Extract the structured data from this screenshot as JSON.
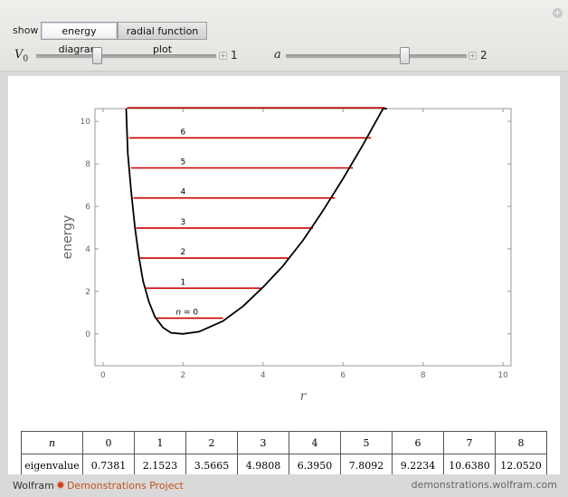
{
  "controls": {
    "show_label": "show",
    "tabs": [
      {
        "label": "energy diagram",
        "active": true
      },
      {
        "label": "radial function plot",
        "active": false
      }
    ],
    "sliders": [
      {
        "label": "V",
        "subscript": "0",
        "value_text": "1",
        "position_fraction": 0.35
      },
      {
        "label": "a",
        "value_text": "2",
        "position_fraction": 0.65
      }
    ]
  },
  "chart_data": {
    "type": "line",
    "title": "",
    "xlabel": "r",
    "ylabel": "energy",
    "xlim": [
      -0.2,
      10.2
    ],
    "ylim": [
      -1.5,
      10.6
    ],
    "x_ticks": [
      0,
      2,
      4,
      6,
      8,
      10
    ],
    "y_ticks": [
      0,
      2,
      4,
      6,
      8,
      10
    ],
    "potential_curve": {
      "color": "#000000",
      "x": [
        0.58,
        0.62,
        0.7,
        0.8,
        0.9,
        1.0,
        1.15,
        1.3,
        1.5,
        1.7,
        2.0,
        2.4,
        3.0,
        3.5,
        4.0,
        4.5,
        5.0,
        5.5,
        6.0,
        6.5,
        7.0,
        7.1
      ],
      "y": [
        10.6,
        8.5,
        6.8,
        5.0,
        3.6,
        2.5,
        1.5,
        0.8,
        0.3,
        0.05,
        0.0,
        0.1,
        0.6,
        1.3,
        2.2,
        3.2,
        4.4,
        5.8,
        7.3,
        8.9,
        10.6,
        10.6
      ]
    },
    "levels": {
      "color": "#cc0000",
      "n_labels": [
        "n = 0",
        "1",
        "2",
        "3",
        "4",
        "5",
        "6"
      ],
      "energies": [
        0.7381,
        2.1523,
        3.5665,
        4.9808,
        6.395,
        7.8092,
        9.2234,
        10.638
      ],
      "x_start": [
        1.35,
        1.05,
        0.92,
        0.83,
        0.76,
        0.7,
        0.65,
        0.6
      ],
      "x_end": [
        3.0,
        3.95,
        4.65,
        5.25,
        5.8,
        6.25,
        6.7,
        7.05
      ]
    }
  },
  "table": {
    "header_label": "n",
    "header_values": [
      "0",
      "1",
      "2",
      "3",
      "4",
      "5",
      "6",
      "7",
      "8"
    ],
    "row_label": "eigenvalue",
    "row_values": [
      "0.7381",
      "2.1523",
      "3.5665",
      "4.9808",
      "6.3950",
      "7.8092",
      "9.2234",
      "10.6380",
      "12.0520"
    ]
  },
  "footer": {
    "brand": "Wolfram",
    "project": "Demonstrations Project",
    "url": "demonstrations.wolfram.com"
  }
}
